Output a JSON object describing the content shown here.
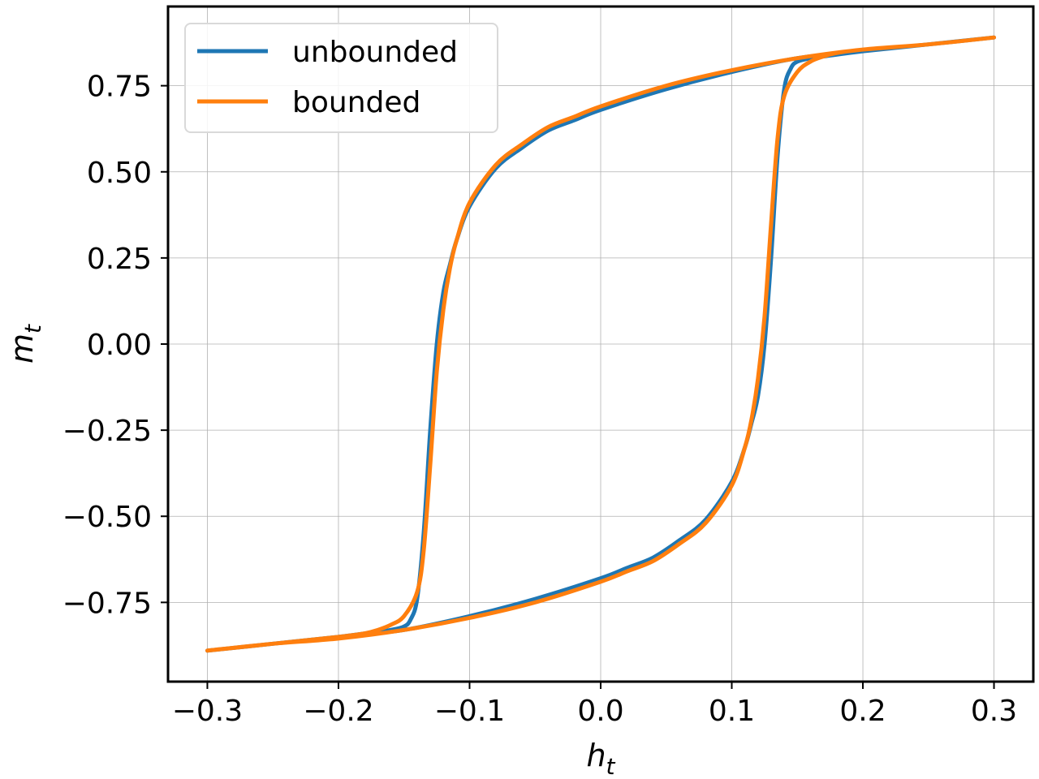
{
  "chart_data": {
    "type": "line",
    "xlabel": "h",
    "xlabel_sub": "t",
    "ylabel": "m",
    "ylabel_sub": "t",
    "xlim": [
      -0.33,
      0.33
    ],
    "ylim": [
      -0.98,
      0.98
    ],
    "grid": true,
    "legend_position": "top-left",
    "x_ticks": [
      -0.3,
      -0.2,
      -0.1,
      0.0,
      0.1,
      0.2,
      0.3
    ],
    "x_tick_labels": [
      "−0.3",
      "−0.2",
      "−0.1",
      "0.0",
      "0.1",
      "0.2",
      "0.3"
    ],
    "y_ticks": [
      -0.75,
      -0.5,
      -0.25,
      0.0,
      0.25,
      0.5,
      0.75
    ],
    "y_tick_labels": [
      "−0.75",
      "−0.50",
      "−0.25",
      "0.00",
      "0.25",
      "0.50",
      "0.75"
    ],
    "series": [
      {
        "name": "unbounded",
        "color": "#1f77b4",
        "x": [
          -0.3,
          -0.25,
          -0.2,
          -0.17,
          -0.16,
          -0.15,
          -0.145,
          -0.14,
          -0.135,
          -0.13,
          -0.125,
          -0.12,
          -0.115,
          -0.11,
          -0.1,
          -0.08,
          -0.06,
          -0.04,
          -0.02,
          0.0,
          0.05,
          0.1,
          0.15,
          0.2,
          0.25,
          0.3,
          0.25,
          0.2,
          0.17,
          0.16,
          0.15,
          0.145,
          0.14,
          0.135,
          0.13,
          0.125,
          0.12,
          0.115,
          0.11,
          0.1,
          0.08,
          0.06,
          0.04,
          0.02,
          0.0,
          -0.05,
          -0.1,
          -0.15,
          -0.2,
          -0.25,
          -0.3
        ],
        "y": [
          -0.89,
          -0.87,
          -0.85,
          -0.835,
          -0.83,
          -0.82,
          -0.8,
          -0.74,
          -0.55,
          -0.25,
          0.0,
          0.15,
          0.23,
          0.3,
          0.4,
          0.51,
          0.57,
          0.62,
          0.65,
          0.68,
          0.74,
          0.79,
          0.83,
          0.85,
          0.87,
          0.89,
          0.87,
          0.85,
          0.835,
          0.83,
          0.82,
          0.8,
          0.74,
          0.55,
          0.25,
          0.0,
          -0.15,
          -0.23,
          -0.3,
          -0.4,
          -0.51,
          -0.57,
          -0.62,
          -0.65,
          -0.68,
          -0.74,
          -0.79,
          -0.83,
          -0.85,
          -0.87,
          -0.89
        ]
      },
      {
        "name": "bounded",
        "color": "#ff7f0e",
        "x": [
          -0.3,
          -0.25,
          -0.2,
          -0.18,
          -0.17,
          -0.16,
          -0.15,
          -0.14,
          -0.135,
          -0.13,
          -0.125,
          -0.12,
          -0.115,
          -0.11,
          -0.1,
          -0.08,
          -0.06,
          -0.04,
          -0.02,
          0.0,
          0.05,
          0.1,
          0.15,
          0.2,
          0.25,
          0.3,
          0.25,
          0.2,
          0.18,
          0.17,
          0.16,
          0.15,
          0.14,
          0.135,
          0.13,
          0.125,
          0.12,
          0.115,
          0.11,
          0.1,
          0.08,
          0.06,
          0.04,
          0.02,
          0.0,
          -0.05,
          -0.1,
          -0.15,
          -0.2,
          -0.25,
          -0.3
        ],
        "y": [
          -0.89,
          -0.87,
          -0.85,
          -0.84,
          -0.83,
          -0.815,
          -0.79,
          -0.72,
          -0.6,
          -0.35,
          -0.08,
          0.1,
          0.22,
          0.3,
          0.41,
          0.52,
          0.58,
          0.63,
          0.66,
          0.69,
          0.75,
          0.795,
          0.83,
          0.855,
          0.87,
          0.89,
          0.87,
          0.855,
          0.845,
          0.835,
          0.82,
          0.79,
          0.72,
          0.6,
          0.35,
          0.08,
          -0.1,
          -0.22,
          -0.3,
          -0.41,
          -0.52,
          -0.58,
          -0.63,
          -0.66,
          -0.69,
          -0.75,
          -0.795,
          -0.83,
          -0.855,
          -0.87,
          -0.89
        ]
      }
    ]
  }
}
